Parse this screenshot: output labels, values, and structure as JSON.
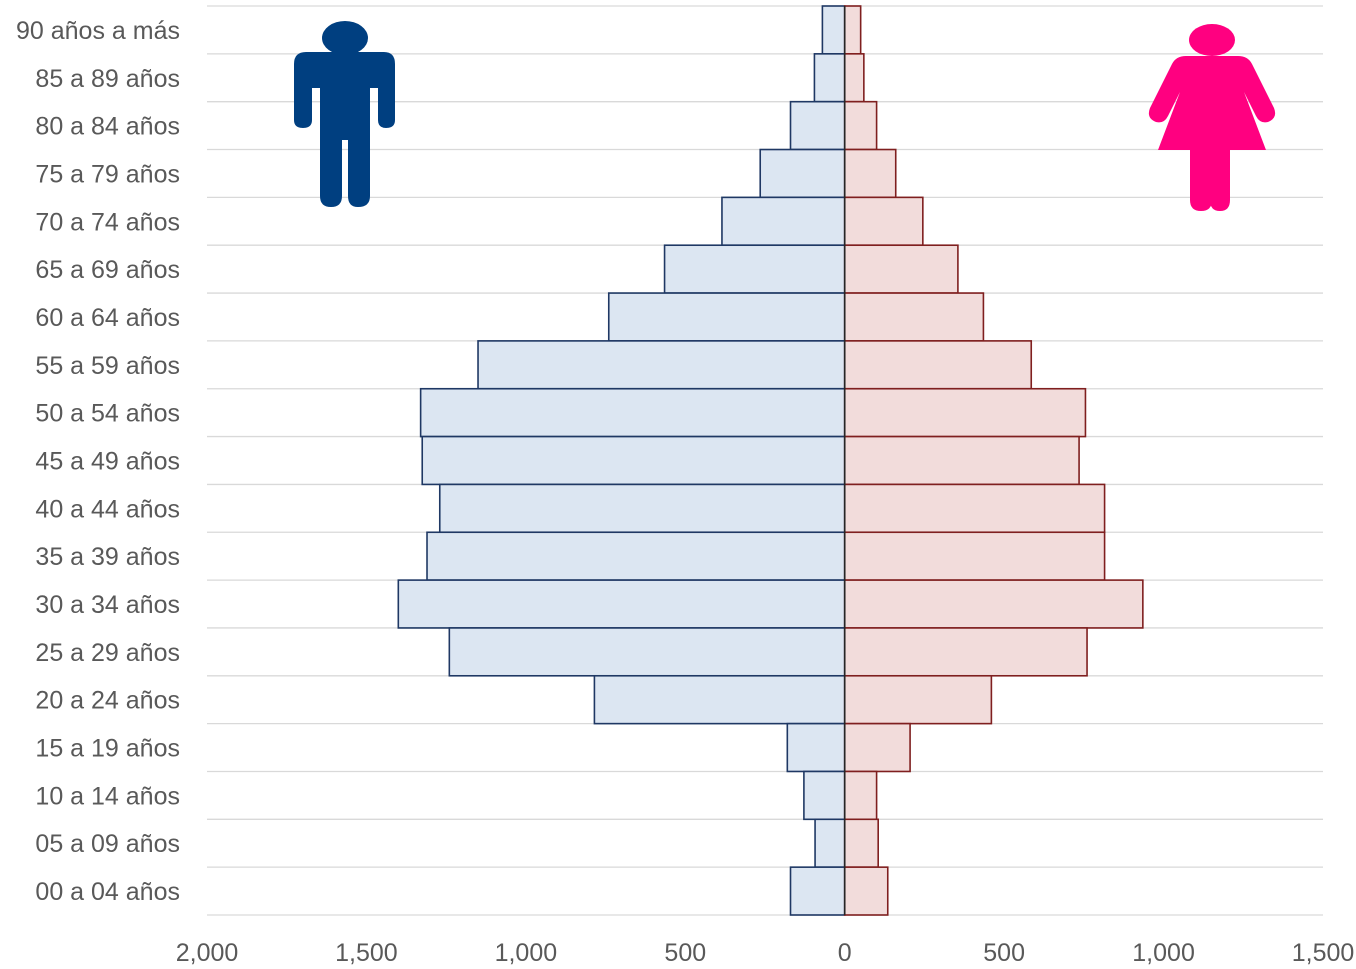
{
  "chart_data": {
    "type": "bar",
    "orientation": "horizontal-population-pyramid",
    "title": "",
    "xlabel": "",
    "ylabel": "",
    "categories": [
      "90 años a más",
      "85 a 89 años",
      "80 a 84 años",
      "75 a 79 años",
      "70 a 74 años",
      "65 a 69 años",
      "60 a 64 años",
      "55 a 59 años",
      "50 a 54 años",
      "45 a 49 años",
      "40 a 44 años",
      "35 a 39 años",
      "30 a 34 años",
      "25 a 29 años",
      "20 a 24 años",
      "15 a 19 años",
      "10 a 14 años",
      "05 a 09 años",
      "00 a 04 años"
    ],
    "series": [
      {
        "side": "left",
        "color": "#dce6f2",
        "edge": "#1f3864",
        "values": [
          70,
          95,
          170,
          265,
          385,
          565,
          740,
          1150,
          1330,
          1325,
          1270,
          1310,
          1400,
          1240,
          785,
          180,
          128,
          93,
          170
        ]
      },
      {
        "side": "right",
        "color": "#f2dcdb",
        "edge": "#7f1f1f",
        "values": [
          50,
          60,
          100,
          160,
          245,
          355,
          435,
          585,
          755,
          735,
          815,
          815,
          935,
          760,
          460,
          205,
          100,
          105,
          135
        ]
      }
    ],
    "xlim": [
      -2000,
      1500
    ],
    "xticks": [
      -2000,
      -1500,
      -1000,
      -500,
      0,
      500,
      1000,
      1500
    ],
    "xtick_labels": [
      "2,000",
      "1,500",
      "1,000",
      "500",
      "0",
      "500",
      "1,000",
      "1,500"
    ],
    "grid": "horizontal",
    "legend": "icons",
    "icons": {
      "male": {
        "name": "male-person-icon",
        "color": "#003f80"
      },
      "female": {
        "name": "female-person-icon",
        "color": "#ff0080"
      }
    }
  }
}
